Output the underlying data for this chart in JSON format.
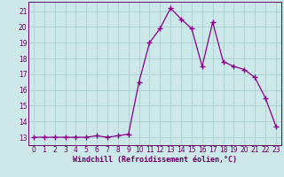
{
  "x": [
    0,
    1,
    2,
    3,
    4,
    5,
    6,
    7,
    8,
    9,
    10,
    11,
    12,
    13,
    14,
    15,
    16,
    17,
    18,
    19,
    20,
    21,
    22,
    23
  ],
  "y": [
    13.0,
    13.0,
    13.0,
    13.0,
    13.0,
    13.0,
    13.1,
    13.0,
    13.1,
    13.2,
    16.5,
    19.0,
    19.9,
    21.2,
    20.5,
    19.9,
    17.5,
    20.3,
    17.8,
    17.5,
    17.3,
    16.8,
    15.5,
    13.7
  ],
  "line_color": "#8b008b",
  "marker": "+",
  "marker_size": 4,
  "marker_lw": 1.0,
  "line_width": 0.9,
  "bg_color": "#cce8e8",
  "grid_color": "#aacece",
  "xlabel": "Windchill (Refroidissement éolien,°C)",
  "xlabel_color": "#660066",
  "tick_color": "#660066",
  "axis_color": "#660066",
  "xlim_min": -0.5,
  "xlim_max": 23.5,
  "ylim_min": 12.5,
  "ylim_max": 21.6,
  "yticks": [
    13,
    14,
    15,
    16,
    17,
    18,
    19,
    20,
    21
  ],
  "xticks": [
    0,
    1,
    2,
    3,
    4,
    5,
    6,
    7,
    8,
    9,
    10,
    11,
    12,
    13,
    14,
    15,
    16,
    17,
    18,
    19,
    20,
    21,
    22,
    23
  ],
  "label_fontsize": 6.0,
  "tick_fontsize": 5.5
}
